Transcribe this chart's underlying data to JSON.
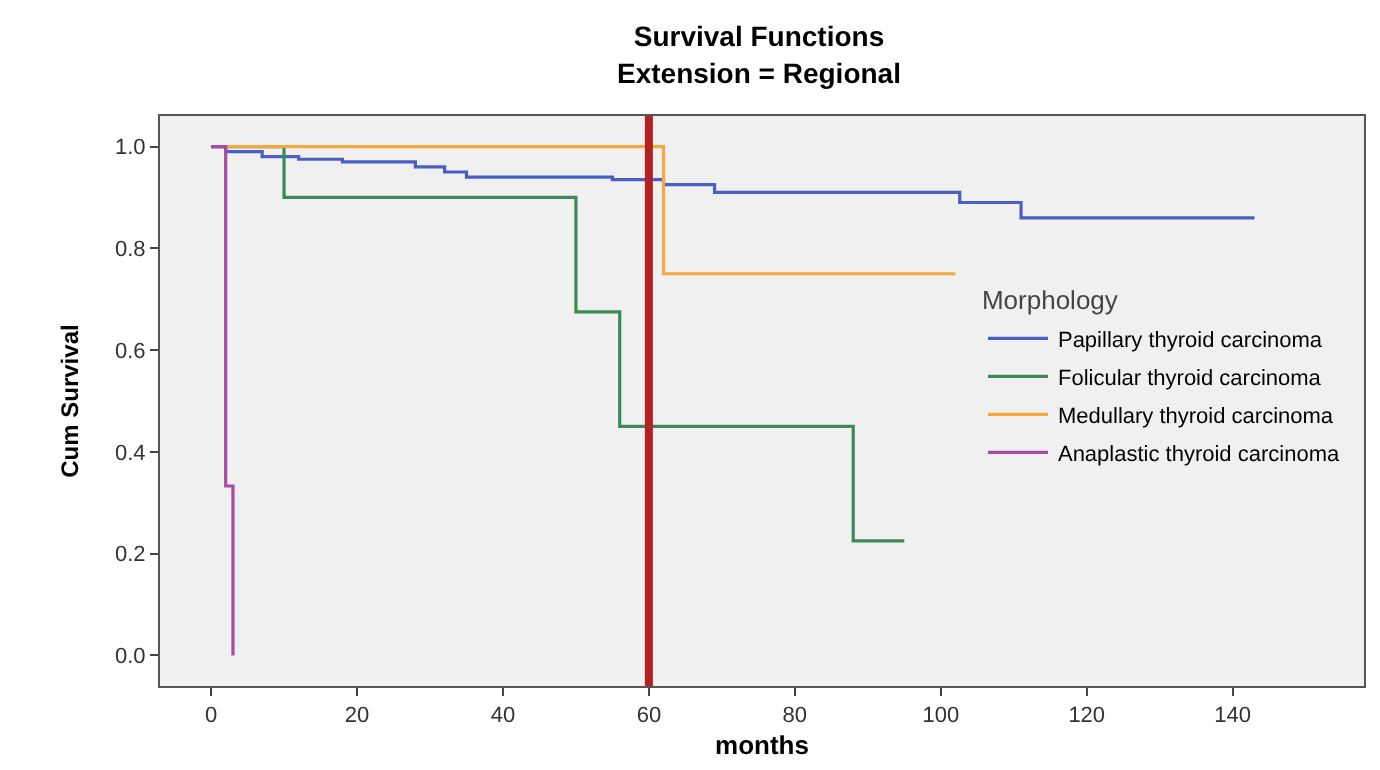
{
  "chart_data": {
    "type": "step",
    "title": "Survival Functions",
    "subtitle": "Extension = Regional",
    "xlabel": "months",
    "ylabel": "Cum Survival",
    "legend_title": "Morphology",
    "legend": "right",
    "grid": false,
    "xlim": [
      -7,
      158
    ],
    "xticks": [
      0,
      20,
      40,
      60,
      80,
      100,
      120,
      140
    ],
    "ylim": [
      -0.06,
      1.06
    ],
    "yticks": [
      {
        "value": 0,
        "label": "0.0"
      },
      {
        "value": 0.2,
        "label": "0.2"
      },
      {
        "value": 0.4,
        "label": "0.4"
      },
      {
        "value": 0.6,
        "label": "0.6"
      },
      {
        "value": 0.8,
        "label": "0.8"
      },
      {
        "value": 1,
        "label": "1.0"
      }
    ],
    "ref_lines": [
      {
        "axis": "x",
        "value": 60,
        "color": "#b22222"
      }
    ],
    "series": [
      {
        "name": "Papillary thyroid carcinoma",
        "color": "#4a5fc1",
        "x": [
          0,
          2,
          7,
          12,
          18,
          28,
          32,
          35,
          55,
          62,
          69,
          102.6,
          111,
          143
        ],
        "values": [
          1.0,
          0.99,
          0.98,
          0.975,
          0.97,
          0.96,
          0.95,
          0.94,
          0.935,
          0.925,
          0.91,
          0.89,
          0.86,
          0.86
        ]
      },
      {
        "name": "Folicular thyroid carcinoma",
        "color": "#3a8a55",
        "x": [
          0,
          10,
          50,
          56,
          88,
          95
        ],
        "values": [
          1.0,
          0.9,
          0.675,
          0.45,
          0.225,
          0.225
        ]
      },
      {
        "name": "Medullary thyroid carcinoma",
        "color": "#f5a742",
        "x": [
          0,
          62,
          102
        ],
        "values": [
          1.0,
          0.75,
          0.75
        ]
      },
      {
        "name": "Anaplastic thyroid carcinoma",
        "color": "#a64ca6",
        "x": [
          0,
          2,
          3
        ],
        "values": [
          1.0,
          0.333,
          0.0
        ]
      }
    ]
  }
}
